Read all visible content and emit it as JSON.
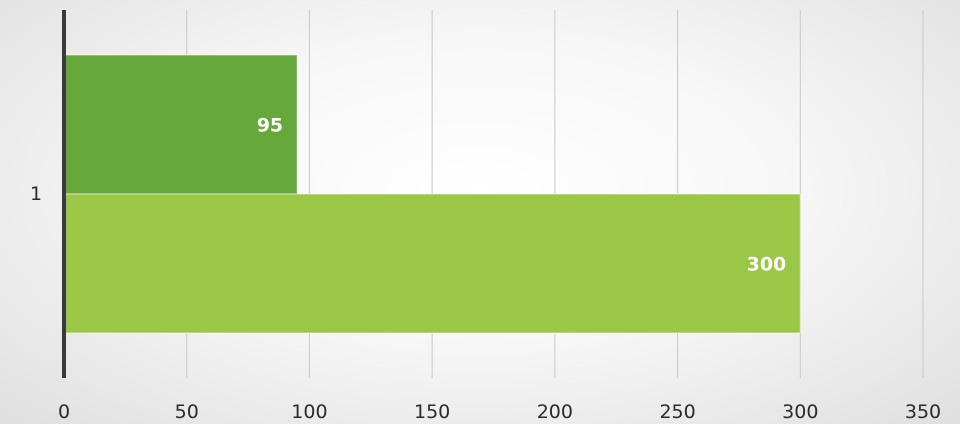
{
  "chart_data": {
    "type": "bar",
    "orientation": "horizontal",
    "categories": [
      "1"
    ],
    "series": [
      {
        "values": [
          95
        ],
        "color": "#66a83a"
      },
      {
        "values": [
          300
        ],
        "color": "#9bc746"
      }
    ],
    "xlim": [
      0,
      350
    ],
    "x_ticks": [
      "0",
      "50",
      "100",
      "150",
      "200",
      "250",
      "300",
      "350"
    ],
    "data_labels": [
      "95",
      "300"
    ],
    "grid": "vertical",
    "legend": "none"
  }
}
